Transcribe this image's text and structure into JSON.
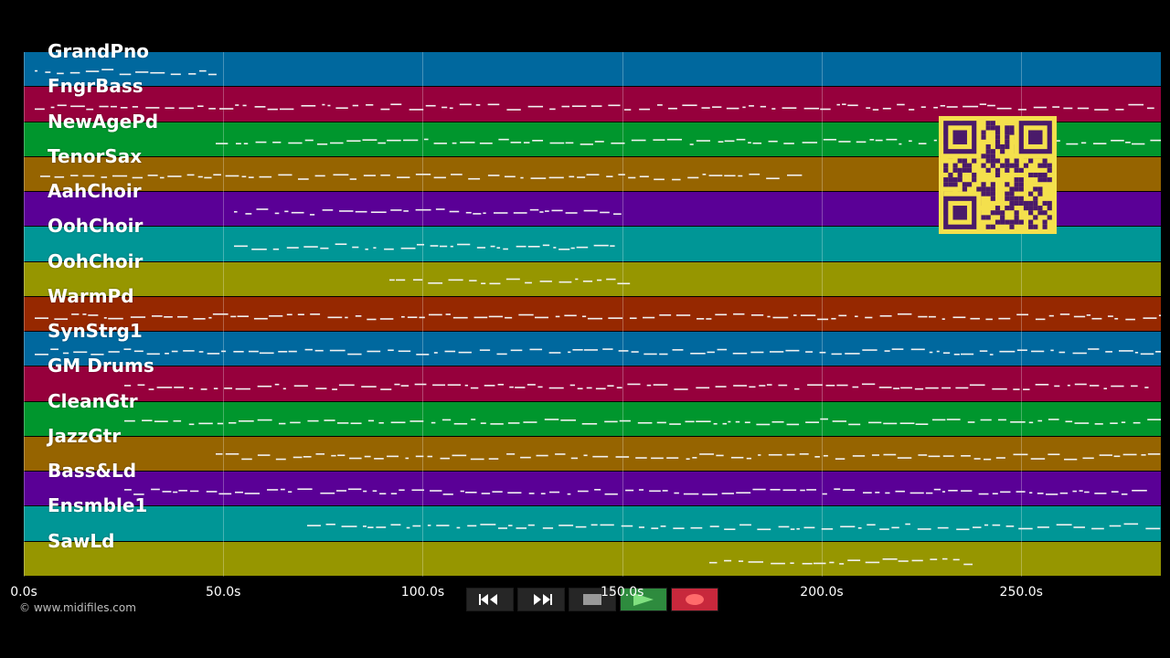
{
  "tracks": [
    {
      "label": "GrandPno",
      "color": "#00689e"
    },
    {
      "label": "FngrBass",
      "color": "#96003c"
    },
    {
      "label": "NewAgePd",
      "color": "#00962d"
    },
    {
      "label": "TenorSax",
      "color": "#966400"
    },
    {
      "label": "AahChoir",
      "color": "#5a0096"
    },
    {
      "label": "OohChoir",
      "color": "#009696"
    },
    {
      "label": "OohChoir",
      "color": "#969600"
    },
    {
      "label": "WarmPd",
      "color": "#962800"
    },
    {
      "label": "SynStrg1",
      "color": "#00689e"
    },
    {
      "label": "GM Drums",
      "color": "#96003c"
    },
    {
      "label": "CleanGtr",
      "color": "#00962d"
    },
    {
      "label": "JazzGtr",
      "color": "#966400"
    },
    {
      "label": "Bass&Ld",
      "color": "#5a0096"
    },
    {
      "label": "Ensmble1",
      "color": "#009696"
    },
    {
      "label": "SawLd",
      "color": "#969600"
    }
  ],
  "timeline": {
    "ticks": [
      {
        "value": 0,
        "label": "0.0s"
      },
      {
        "value": 50,
        "label": "50.0s"
      },
      {
        "value": 100,
        "label": "100.0s"
      },
      {
        "value": 150,
        "label": "150.0s"
      },
      {
        "value": 200,
        "label": "200.0s"
      },
      {
        "value": 250,
        "label": "250.0s"
      }
    ],
    "max_seconds": 285
  },
  "copyright": "© www.midifiles.com",
  "transport": {
    "rewind_icon": "rewind-icon",
    "fast_forward_icon": "fast-forward-icon",
    "stop_icon": "stop-icon",
    "play_icon": "play-icon",
    "record_icon": "record-icon",
    "play_color": "#2e8b3e",
    "record_color": "#c8283c"
  }
}
